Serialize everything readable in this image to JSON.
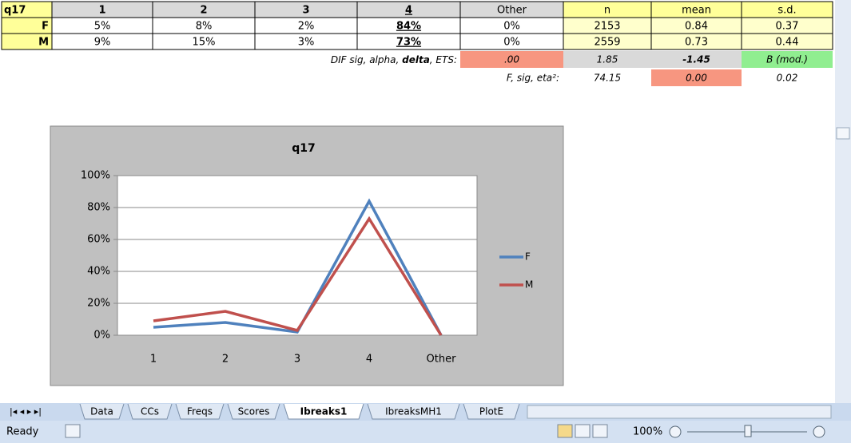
{
  "table": {
    "header": [
      "q17",
      "1",
      "2",
      "3",
      "4",
      "Other",
      "n",
      "mean",
      "s.d."
    ],
    "rows": [
      [
        "F",
        "5%",
        "8%",
        "2%",
        "84%",
        "0%",
        "2153",
        "0.84",
        "0.37"
      ],
      [
        "M",
        "9%",
        "15%",
        "3%",
        "73%",
        "0%",
        "2559",
        "0.73",
        "0.44"
      ]
    ]
  },
  "dif": {
    "label": [
      "DIF sig, alpha, ",
      "delta",
      ", ETS:"
    ],
    "values": [
      ".00",
      "1.85",
      "-1.45",
      "B (mod.)"
    ]
  },
  "anova": {
    "label": "F, sig, eta²:",
    "values": [
      "74.15",
      "0.00",
      "0.02"
    ]
  },
  "chart_data": {
    "type": "line",
    "title": "q17",
    "categories": [
      "1",
      "2",
      "3",
      "4",
      "Other"
    ],
    "series": [
      {
        "name": "F",
        "color": "#4f81bd",
        "values": [
          5,
          8,
          2,
          84,
          0
        ]
      },
      {
        "name": "M",
        "color": "#c0504d",
        "values": [
          9,
          15,
          3,
          73,
          0
        ]
      }
    ],
    "ylim": [
      0,
      100
    ],
    "yticks": [
      {
        "value": 0,
        "label": "0%"
      },
      {
        "value": 20,
        "label": "20%"
      },
      {
        "value": 40,
        "label": "40%"
      },
      {
        "value": 60,
        "label": "60%"
      },
      {
        "value": 80,
        "label": "80%"
      },
      {
        "value": 100,
        "label": "100%"
      }
    ],
    "grid": true,
    "legend": "right"
  },
  "tabs": [
    "Data",
    "CCs",
    "Freqs",
    "Scores",
    "Ibreaks1",
    "IbreaksMH1",
    "PlotE"
  ],
  "status": "Ready",
  "zoom": "100%"
}
